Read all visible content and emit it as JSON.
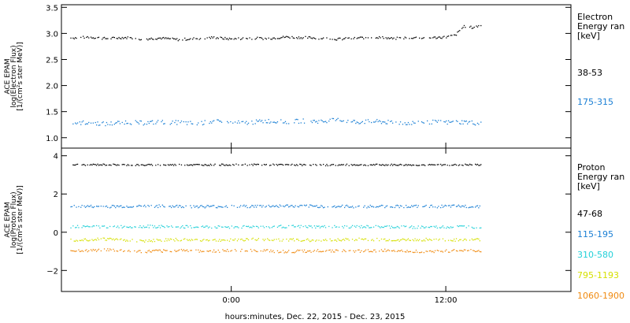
{
  "chart_data": [
    {
      "type": "scatter",
      "ylabel": [
        "ACE EPAM",
        "log(Electron Flux)",
        "[1/(cm²s ster MeV)]"
      ],
      "ylim": [
        0.8,
        3.55
      ],
      "yticks": [
        1.0,
        1.5,
        2.0,
        2.5,
        3.0,
        3.5
      ],
      "ytick_labels": [
        "1.0",
        "1.5",
        "2.0",
        "2.5",
        "3.0",
        "3.5"
      ],
      "legend_title": [
        "Electron",
        "Energy ran",
        "[keV]"
      ],
      "series": [
        {
          "name": "38-53",
          "color": "#000000",
          "x": [
            -9,
            -8,
            -7,
            -6,
            -5,
            -4,
            -3,
            -2,
            -1,
            0,
            1,
            2,
            3,
            4,
            5,
            6,
            7,
            8,
            9,
            10,
            11,
            12,
            12.5,
            13,
            13.5,
            14
          ],
          "y": [
            2.92,
            2.94,
            2.91,
            2.93,
            2.9,
            2.92,
            2.89,
            2.91,
            2.93,
            2.9,
            2.92,
            2.91,
            2.94,
            2.93,
            2.92,
            2.9,
            2.92,
            2.94,
            2.91,
            2.93,
            2.92,
            2.94,
            2.97,
            3.15,
            3.12,
            3.17
          ]
        },
        {
          "name": "175-315",
          "color": "#1a7fd4",
          "x": [
            -9,
            -8,
            -7,
            -6,
            -5,
            -4,
            -3,
            -2,
            -1,
            0,
            1,
            2,
            3,
            4,
            5,
            6,
            7,
            8,
            9,
            10,
            11,
            12,
            13,
            14
          ],
          "y": [
            1.29,
            1.3,
            1.27,
            1.31,
            1.29,
            1.31,
            1.3,
            1.28,
            1.32,
            1.29,
            1.3,
            1.33,
            1.31,
            1.33,
            1.32,
            1.35,
            1.31,
            1.32,
            1.3,
            1.29,
            1.31,
            1.3,
            1.31,
            1.28
          ]
        }
      ]
    },
    {
      "type": "scatter",
      "ylabel": [
        "ACE EPAM",
        "log(Proton Flux)",
        "[1/(cm²s ster MeV)]"
      ],
      "ylim": [
        -3.1,
        4.4
      ],
      "yticks": [
        -2,
        0,
        2,
        4
      ],
      "ytick_labels": [
        "−2",
        "0",
        "2",
        "4"
      ],
      "legend_title": [
        "Proton",
        "Energy ran",
        "[keV]"
      ],
      "series": [
        {
          "name": "47-68",
          "color": "#000000",
          "x": [
            -9,
            -7,
            -5,
            -3,
            -1,
            1,
            3,
            5,
            7,
            9,
            11,
            13,
            14
          ],
          "y": [
            3.55,
            3.56,
            3.54,
            3.55,
            3.55,
            3.56,
            3.55,
            3.54,
            3.55,
            3.55,
            3.54,
            3.55,
            3.55
          ]
        },
        {
          "name": "115-195",
          "color": "#1a7fd4",
          "x": [
            -9,
            -7,
            -5,
            -3,
            -1,
            1,
            3,
            5,
            7,
            9,
            11,
            13,
            14
          ],
          "y": [
            1.38,
            1.37,
            1.39,
            1.38,
            1.37,
            1.38,
            1.4,
            1.38,
            1.37,
            1.38,
            1.37,
            1.38,
            1.37
          ]
        },
        {
          "name": "310-580",
          "color": "#22d0d8",
          "x": [
            -9,
            -7,
            -5,
            -3,
            -1,
            1,
            3,
            5,
            7,
            9,
            11,
            13,
            14
          ],
          "y": [
            0.32,
            0.3,
            0.33,
            0.31,
            0.29,
            0.31,
            0.32,
            0.3,
            0.31,
            0.3,
            0.29,
            0.31,
            0.3
          ]
        },
        {
          "name": "795-1193",
          "color": "#d6e000",
          "x": [
            -9,
            -7,
            -5,
            -3,
            -1,
            1,
            3,
            5,
            7,
            9,
            11,
            13,
            14
          ],
          "y": [
            -0.38,
            -0.33,
            -0.42,
            -0.36,
            -0.4,
            -0.35,
            -0.37,
            -0.4,
            -0.34,
            -0.38,
            -0.36,
            -0.39,
            -0.37
          ]
        },
        {
          "name": "1060-1900",
          "color": "#f08a10",
          "x": [
            -9,
            -7,
            -5,
            -3,
            -1,
            1,
            3,
            5,
            7,
            9,
            11,
            13,
            14
          ],
          "y": [
            -0.95,
            -0.9,
            -1.0,
            -0.92,
            -0.97,
            -0.91,
            -0.99,
            -0.94,
            -0.96,
            -0.92,
            -1.0,
            -0.93,
            -0.96
          ]
        }
      ]
    }
  ],
  "x_axis": {
    "xlim": [
      -9.5,
      19
    ],
    "ticks": [
      0,
      12
    ],
    "tick_labels": [
      "0:00",
      "12:00"
    ],
    "label": "hours:minutes, Dec. 22, 2015 - Dec. 23, 2015"
  }
}
